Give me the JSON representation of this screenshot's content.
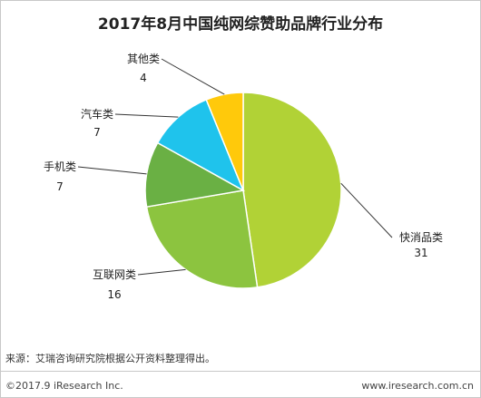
{
  "chart_data": {
    "type": "pie",
    "title": "2017年8月中国纯网综赞助品牌行业分布",
    "categories": [
      "快消品类",
      "互联网类",
      "手机类",
      "汽车类",
      "其他类"
    ],
    "values": [
      31,
      16,
      7,
      7,
      4
    ],
    "colors": [
      "#b1d236",
      "#8cc43f",
      "#6ab044",
      "#1fc3ec",
      "#ffc90b"
    ],
    "legend": "none"
  },
  "footer": {
    "source": "来源：艾瑞咨询研究院根据公开资料整理得出。",
    "copyright": "©2017.9 iResearch Inc.",
    "website": "www.iresearch.com.cn"
  }
}
